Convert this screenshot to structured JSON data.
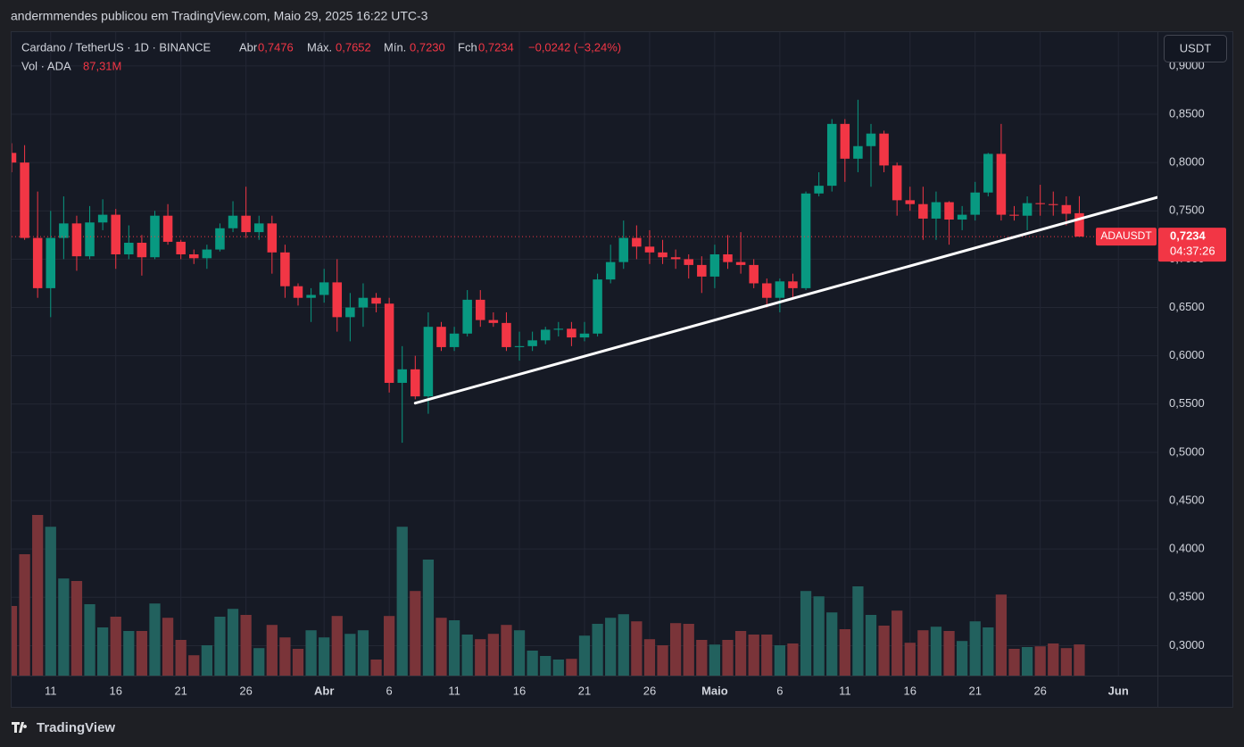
{
  "page": {
    "byline": "andermmendes publicou em TradingView.com, Maio 29, 2025 16:22 UTC-3",
    "footer": "TradingView",
    "currency_button": "USDT",
    "header": {
      "symbol": "Cardano / TetherUS · 1D · BINANCE",
      "open_name": "Abr",
      "open": "0,7476",
      "high_name": "Máx.",
      "high": "0,7652",
      "low_name": "Mín.",
      "low": "0,7230",
      "close_name": "Fch",
      "close": "0,7234",
      "change": "−0,0242 (−3,24%)"
    }
  },
  "chart_data": {
    "type": "candlestick",
    "x": [
      "2025-03-08",
      "2025-03-09",
      "2025-03-10",
      "2025-03-11",
      "2025-03-12",
      "2025-03-13",
      "2025-03-14",
      "2025-03-15",
      "2025-03-16",
      "2025-03-17",
      "2025-03-18",
      "2025-03-19",
      "2025-03-20",
      "2025-03-21",
      "2025-03-22",
      "2025-03-23",
      "2025-03-24",
      "2025-03-25",
      "2025-03-26",
      "2025-03-27",
      "2025-03-28",
      "2025-03-29",
      "2025-03-30",
      "2025-03-31",
      "2025-04-01",
      "2025-04-02",
      "2025-04-03",
      "2025-04-04",
      "2025-04-05",
      "2025-04-06",
      "2025-04-07",
      "2025-04-08",
      "2025-04-09",
      "2025-04-10",
      "2025-04-11",
      "2025-04-12",
      "2025-04-13",
      "2025-04-14",
      "2025-04-15",
      "2025-04-16",
      "2025-04-17",
      "2025-04-18",
      "2025-04-19",
      "2025-04-20",
      "2025-04-21",
      "2025-04-22",
      "2025-04-23",
      "2025-04-24",
      "2025-04-25",
      "2025-04-26",
      "2025-04-27",
      "2025-04-28",
      "2025-04-29",
      "2025-04-30",
      "2025-05-01",
      "2025-05-02",
      "2025-05-03",
      "2025-05-04",
      "2025-05-05",
      "2025-05-06",
      "2025-05-07",
      "2025-05-08",
      "2025-05-09",
      "2025-05-10",
      "2025-05-11",
      "2025-05-12",
      "2025-05-13",
      "2025-05-14",
      "2025-05-15",
      "2025-05-16",
      "2025-05-17",
      "2025-05-18",
      "2025-05-19",
      "2025-05-20",
      "2025-05-21",
      "2025-05-22",
      "2025-05-23",
      "2025-05-24",
      "2025-05-25",
      "2025-05-26",
      "2025-05-27",
      "2025-05-28",
      "2025-05-29"
    ],
    "series": [
      {
        "name": "ADAUSDT",
        "up_color": "#089981",
        "down_color": "#f23645",
        "open": [
          0.81,
          0.8,
          0.722,
          0.67,
          0.722,
          0.737,
          0.703,
          0.738,
          0.746,
          0.705,
          0.717,
          0.702,
          0.745,
          0.718,
          0.705,
          0.701,
          0.71,
          0.732,
          0.745,
          0.728,
          0.737,
          0.707,
          0.672,
          0.66,
          0.663,
          0.676,
          0.64,
          0.65,
          0.66,
          0.654,
          0.572,
          0.586,
          0.558,
          0.63,
          0.609,
          0.623,
          0.658,
          0.637,
          0.634,
          0.609,
          0.61,
          0.616,
          0.627,
          0.628,
          0.619,
          0.623,
          0.679,
          0.697,
          0.722,
          0.713,
          0.707,
          0.702,
          0.7,
          0.694,
          0.682,
          0.705,
          0.697,
          0.694,
          0.675,
          0.66,
          0.677,
          0.67,
          0.768,
          0.776,
          0.84,
          0.804,
          0.817,
          0.83,
          0.797,
          0.761,
          0.757,
          0.742,
          0.759,
          0.741,
          0.746,
          0.769,
          0.809,
          0.746,
          0.745,
          0.758,
          0.757,
          0.756,
          0.7476
        ],
        "high": [
          0.82,
          0.818,
          0.77,
          0.75,
          0.765,
          0.745,
          0.755,
          0.762,
          0.752,
          0.735,
          0.725,
          0.75,
          0.757,
          0.72,
          0.71,
          0.715,
          0.737,
          0.76,
          0.775,
          0.745,
          0.745,
          0.715,
          0.675,
          0.67,
          0.69,
          0.7,
          0.665,
          0.675,
          0.665,
          0.66,
          0.61,
          0.6,
          0.645,
          0.635,
          0.63,
          0.668,
          0.668,
          0.645,
          0.645,
          0.625,
          0.625,
          0.63,
          0.635,
          0.635,
          0.635,
          0.685,
          0.715,
          0.74,
          0.735,
          0.73,
          0.72,
          0.71,
          0.705,
          0.703,
          0.715,
          0.725,
          0.728,
          0.7,
          0.68,
          0.68,
          0.685,
          0.77,
          0.79,
          0.845,
          0.845,
          0.865,
          0.84,
          0.833,
          0.8,
          0.775,
          0.775,
          0.77,
          0.76,
          0.755,
          0.78,
          0.81,
          0.84,
          0.755,
          0.765,
          0.777,
          0.77,
          0.765,
          0.7652
        ],
        "low": [
          0.79,
          0.72,
          0.66,
          0.64,
          0.7,
          0.688,
          0.7,
          0.73,
          0.69,
          0.7,
          0.683,
          0.7,
          0.715,
          0.7,
          0.695,
          0.69,
          0.708,
          0.728,
          0.722,
          0.72,
          0.685,
          0.66,
          0.652,
          0.635,
          0.655,
          0.625,
          0.615,
          0.63,
          0.645,
          0.562,
          0.51,
          0.555,
          0.54,
          0.605,
          0.605,
          0.62,
          0.63,
          0.63,
          0.605,
          0.595,
          0.605,
          0.612,
          0.62,
          0.61,
          0.615,
          0.62,
          0.675,
          0.69,
          0.7,
          0.695,
          0.695,
          0.69,
          0.68,
          0.665,
          0.67,
          0.69,
          0.685,
          0.67,
          0.65,
          0.645,
          0.66,
          0.668,
          0.765,
          0.77,
          0.78,
          0.79,
          0.775,
          0.79,
          0.745,
          0.75,
          0.72,
          0.72,
          0.715,
          0.73,
          0.74,
          0.765,
          0.74,
          0.74,
          0.73,
          0.745,
          0.745,
          0.735,
          0.723
        ],
        "close": [
          0.8,
          0.722,
          0.67,
          0.722,
          0.737,
          0.703,
          0.738,
          0.746,
          0.705,
          0.717,
          0.702,
          0.745,
          0.718,
          0.705,
          0.701,
          0.71,
          0.732,
          0.745,
          0.728,
          0.737,
          0.707,
          0.672,
          0.66,
          0.663,
          0.676,
          0.64,
          0.65,
          0.66,
          0.654,
          0.572,
          0.586,
          0.558,
          0.63,
          0.609,
          0.623,
          0.658,
          0.637,
          0.634,
          0.609,
          0.61,
          0.616,
          0.627,
          0.628,
          0.619,
          0.623,
          0.679,
          0.697,
          0.722,
          0.713,
          0.707,
          0.702,
          0.7,
          0.694,
          0.682,
          0.705,
          0.697,
          0.694,
          0.675,
          0.66,
          0.677,
          0.67,
          0.768,
          0.776,
          0.84,
          0.804,
          0.817,
          0.83,
          0.797,
          0.761,
          0.757,
          0.742,
          0.759,
          0.741,
          0.746,
          0.769,
          0.809,
          0.746,
          0.745,
          0.758,
          0.757,
          0.756,
          0.747,
          0.7234
        ]
      }
    ],
    "volume": {
      "name": "Vol · ADA",
      "last_label": "87,31M",
      "up_color": "#22615e",
      "down_color": "#7a3439",
      "values": [
        195,
        340,
        450,
        417,
        272,
        265,
        200,
        135,
        165,
        125,
        125,
        202,
        162,
        100,
        57,
        85,
        165,
        187,
        170,
        77,
        142,
        107,
        75,
        127,
        107,
        167,
        117,
        127,
        45,
        167,
        417,
        237,
        325,
        162,
        155,
        115,
        102,
        117,
        142,
        127,
        70,
        55,
        45,
        47,
        112,
        145,
        162,
        172,
        152,
        102,
        85,
        147,
        145,
        100,
        87,
        100,
        125,
        115,
        115,
        85,
        90,
        237,
        222,
        177,
        130,
        250,
        170,
        140,
        182,
        92,
        127,
        137,
        125,
        97,
        152,
        135,
        227,
        75,
        80,
        82,
        90,
        77,
        87.31
      ]
    },
    "trendline": {
      "x": [
        "2025-04-08",
        "2025-06-04"
      ],
      "y": [
        0.551,
        0.764
      ],
      "color": "#ffffff"
    },
    "last_price": {
      "value": 0.7234,
      "label": "0,7234",
      "countdown": "04:37:26",
      "color": "#f23645"
    },
    "xlim": [
      "2025-03-08",
      "2025-06-04"
    ],
    "xticks": [
      {
        "value": "2025-03-11",
        "label": "11"
      },
      {
        "value": "2025-03-16",
        "label": "16"
      },
      {
        "value": "2025-03-21",
        "label": "21"
      },
      {
        "value": "2025-03-26",
        "label": "26"
      },
      {
        "value": "2025-04-01",
        "label": "Abr"
      },
      {
        "value": "2025-04-06",
        "label": "6"
      },
      {
        "value": "2025-04-11",
        "label": "11"
      },
      {
        "value": "2025-04-16",
        "label": "16"
      },
      {
        "value": "2025-04-21",
        "label": "21"
      },
      {
        "value": "2025-04-26",
        "label": "26"
      },
      {
        "value": "2025-05-01",
        "label": "Maio"
      },
      {
        "value": "2025-05-06",
        "label": "6"
      },
      {
        "value": "2025-05-11",
        "label": "11"
      },
      {
        "value": "2025-05-16",
        "label": "16"
      },
      {
        "value": "2025-05-21",
        "label": "21"
      },
      {
        "value": "2025-05-26",
        "label": "26"
      },
      {
        "value": "2025-06-01",
        "label": "Jun"
      }
    ],
    "ylim": [
      0.269,
      0.935
    ],
    "yticks": [
      {
        "value": 0.3,
        "label": "0,3000"
      },
      {
        "value": 0.35,
        "label": "0,3500"
      },
      {
        "value": 0.4,
        "label": "0,4000"
      },
      {
        "value": 0.45,
        "label": "0,4500"
      },
      {
        "value": 0.5,
        "label": "0,5000"
      },
      {
        "value": 0.55,
        "label": "0,5500"
      },
      {
        "value": 0.6,
        "label": "0,6000"
      },
      {
        "value": 0.65,
        "label": "0,6500"
      },
      {
        "value": 0.7,
        "label": "0,7000"
      },
      {
        "value": 0.75,
        "label": "0,7500"
      },
      {
        "value": 0.8,
        "label": "0,8000"
      },
      {
        "value": 0.85,
        "label": "0,8500"
      },
      {
        "value": 0.9,
        "label": "0,9000"
      }
    ],
    "grid": true
  }
}
